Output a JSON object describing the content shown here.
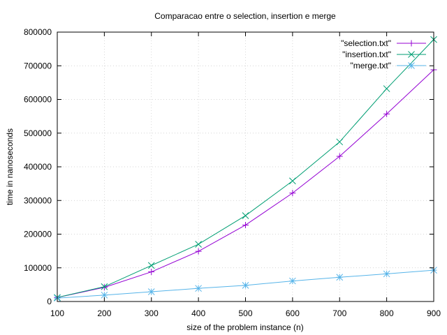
{
  "chart_data": {
    "type": "line",
    "title": "Comparacao entre o selection, insertion e merge",
    "xlabel": "size of the problem instance (n)",
    "ylabel": "time in nanoseconds",
    "xlim": [
      100,
      900
    ],
    "ylim": [
      0,
      800000
    ],
    "x_ticks": [
      100,
      200,
      300,
      400,
      500,
      600,
      700,
      800,
      900
    ],
    "y_ticks": [
      0,
      100000,
      200000,
      300000,
      400000,
      500000,
      600000,
      700000,
      800000
    ],
    "grid": true,
    "legend_position": "top-right",
    "x": [
      100,
      200,
      300,
      400,
      500,
      600,
      700,
      800,
      900
    ],
    "series": [
      {
        "name": "\"selection.txt\"",
        "color": "#9400d3",
        "marker": "plus",
        "values": [
          12000,
          42000,
          88000,
          149000,
          227000,
          322000,
          431000,
          557000,
          688000
        ]
      },
      {
        "name": "\"insertion.txt\"",
        "color": "#009e73",
        "marker": "cross",
        "values": [
          12000,
          44000,
          107000,
          170000,
          255000,
          358000,
          474000,
          632000,
          778000
        ]
      },
      {
        "name": "\"merge.txt\"",
        "color": "#56b4e9",
        "marker": "star",
        "values": [
          10000,
          19000,
          29000,
          39000,
          48000,
          61000,
          72000,
          82000,
          93000
        ]
      }
    ]
  }
}
